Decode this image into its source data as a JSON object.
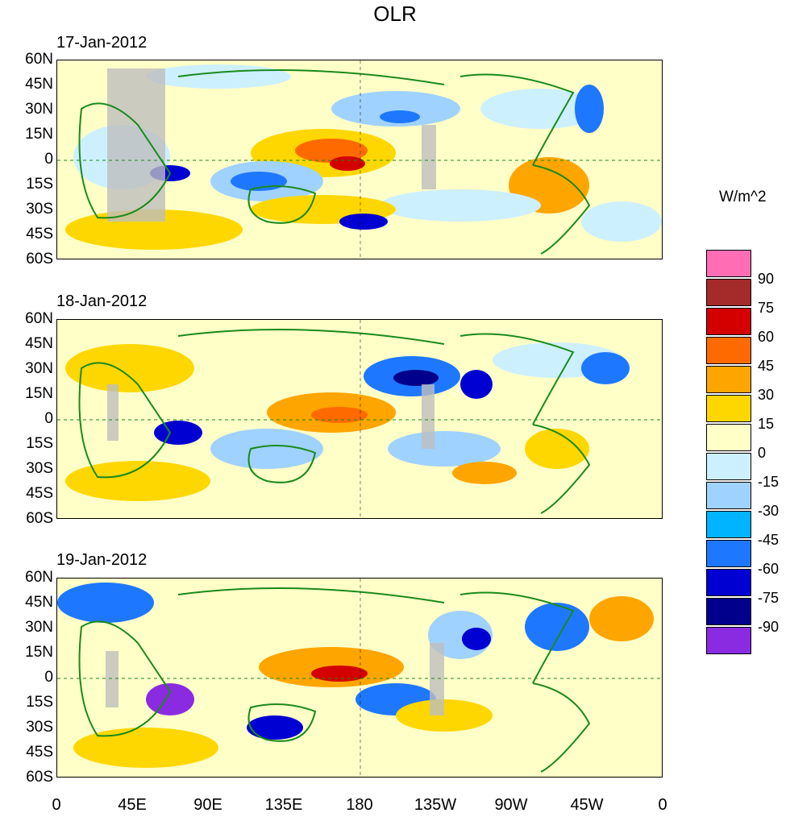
{
  "title": "OLR",
  "panels": [
    {
      "date": "17-Jan-2012"
    },
    {
      "date": "18-Jan-2012"
    },
    {
      "date": "19-Jan-2012"
    }
  ],
  "lat_labels": [
    "60N",
    "45N",
    "30N",
    "15N",
    "0",
    "15S",
    "30S",
    "45S",
    "60S"
  ],
  "lon_labels": [
    "0",
    "45E",
    "90E",
    "135E",
    "180",
    "135W",
    "90W",
    "45W",
    "0"
  ],
  "legend": {
    "unit": "W/m^2",
    "levels": [
      "90",
      "75",
      "60",
      "45",
      "30",
      "15",
      "0",
      "-15",
      "-30",
      "-45",
      "-60",
      "-75",
      "-90"
    ],
    "colors": [
      "#ff6eb4",
      "#a52a2a",
      "#d40000",
      "#ff6a00",
      "#ffa500",
      "#ffd700",
      "#ffffc8",
      "#cdf0ff",
      "#a0d2ff",
      "#00b4ff",
      "#1e78ff",
      "#0000d2",
      "#00008c",
      "#8a2be2"
    ]
  }
}
